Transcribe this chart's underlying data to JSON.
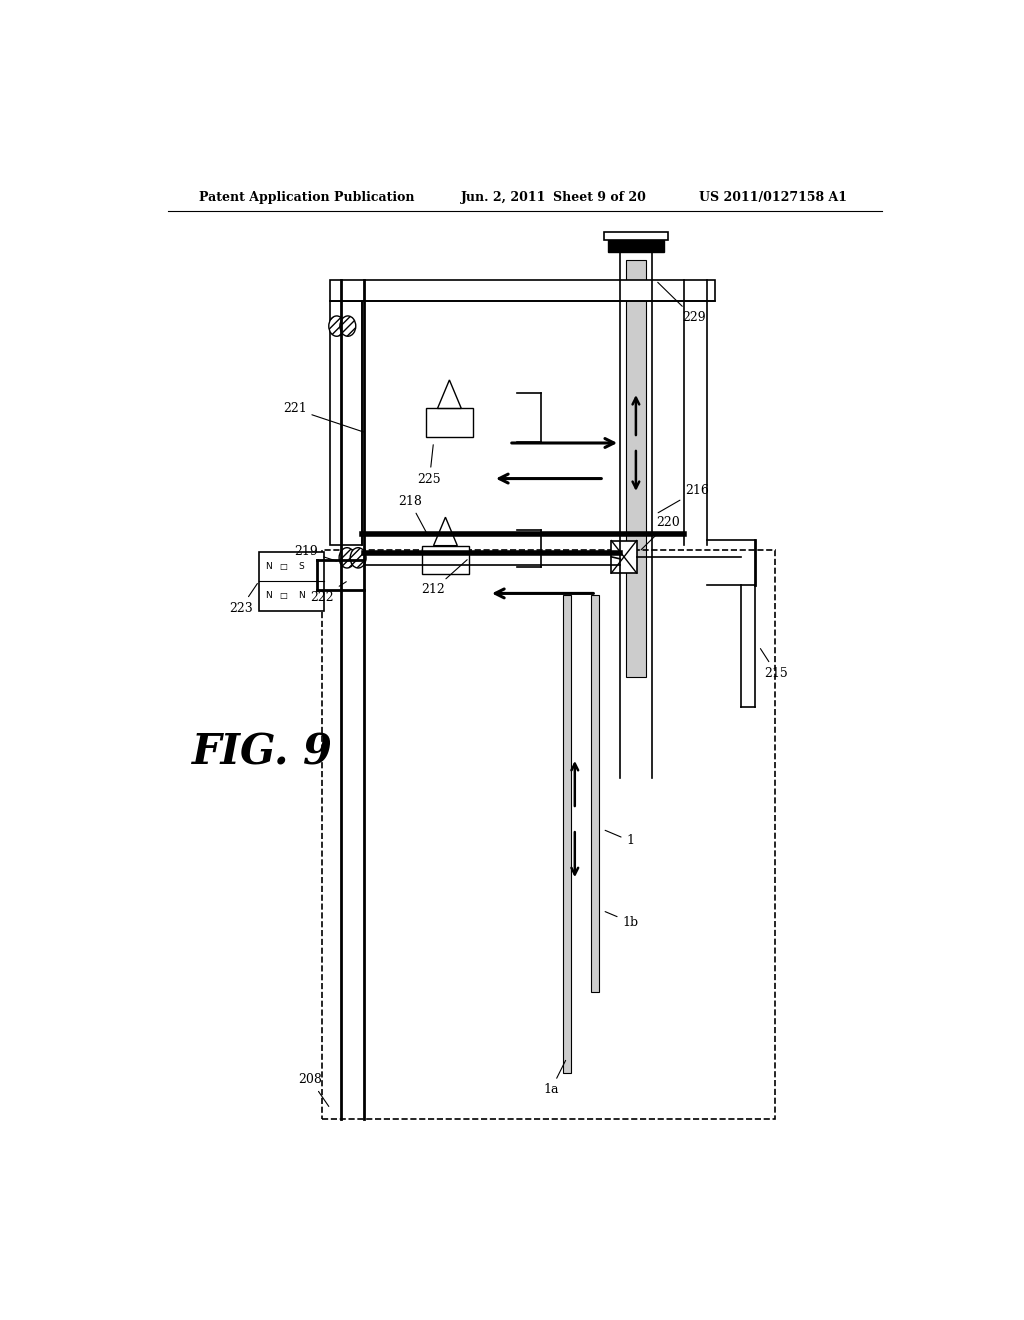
{
  "bg_color": "#ffffff",
  "header_text": "Patent Application Publication",
  "header_date": "Jun. 2, 2011",
  "header_sheet": "Sheet 9 of 20",
  "header_patent": "US 2011/0127158 A1",
  "fig_label": "FIG. 9",
  "lw_main": 2.0,
  "lw_thin": 1.2,
  "lw_thick": 4.0
}
